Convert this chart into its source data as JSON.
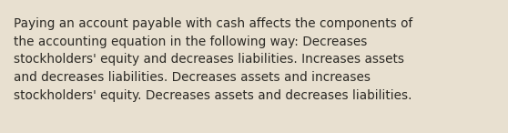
{
  "text": "Paying an account payable with cash affects the components of\nthe accounting equation in the following way: Decreases\nstockholders' equity and decreases liabilities. Increases assets\nand decreases liabilities. Decreases assets and increases\nstockholders' equity. Decreases assets and decreases liabilities.",
  "background_color": "#e8e0d0",
  "text_color": "#2c2a25",
  "font_size": 9.8,
  "font_family": "DejaVu Sans",
  "fig_width": 5.58,
  "fig_height": 1.46,
  "dpi": 100
}
